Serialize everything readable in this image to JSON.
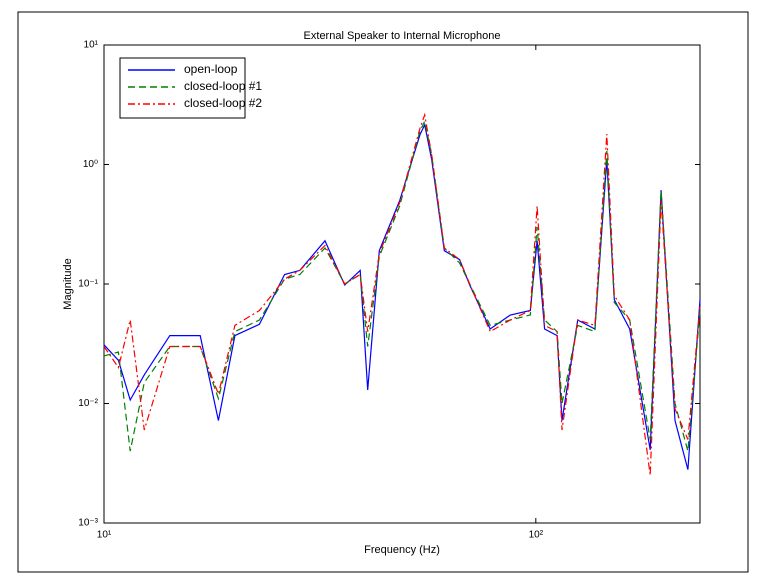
{
  "chart_data": {
    "type": "line",
    "title": "External Speaker to Internal Microphone",
    "x_label": "Frequency (Hz)",
    "y_label": "Magnitude",
    "xscale": "log",
    "yscale": "log",
    "legend": "upper left",
    "xlim": [
      10,
      240
    ],
    "ylim": [
      0.001,
      10
    ],
    "xticks": [
      {
        "value": 10,
        "label": "10¹"
      },
      {
        "value": 100,
        "label": "10²"
      }
    ],
    "yticks": [
      {
        "value": 0.001,
        "label": "10⁻³"
      },
      {
        "value": 0.01,
        "label": "10⁻²"
      },
      {
        "value": 0.1,
        "label": "10⁻¹"
      },
      {
        "value": 1,
        "label": "10⁰"
      },
      {
        "value": 10,
        "label": "10¹"
      }
    ],
    "x": [
      10,
      10.8,
      11.5,
      12.4,
      14.2,
      16.7,
      18.4,
      20.1,
      22.9,
      26.2,
      28.4,
      32.5,
      36.1,
      39.2,
      40.8,
      43.4,
      48.4,
      53.9,
      55.3,
      57.4,
      61.4,
      66.6,
      70.3,
      78.4,
      87.3,
      97.1,
      100.7,
      104.8,
      112,
      115,
      125,
      137,
      146,
      152,
      165,
      184,
      195,
      210,
      225,
      240
    ],
    "series": [
      {
        "name": "open-loop",
        "color": "#0000ff",
        "style": "solid",
        "values": [
          0.031,
          0.023,
          0.0107,
          0.0174,
          0.037,
          0.037,
          0.0072,
          0.037,
          0.046,
          0.12,
          0.13,
          0.23,
          0.098,
          0.13,
          0.013,
          0.19,
          0.5,
          1.77,
          2.15,
          1.1,
          0.19,
          0.16,
          0.098,
          0.042,
          0.055,
          0.06,
          0.23,
          0.042,
          0.037,
          0.0072,
          0.05,
          0.042,
          1.1,
          0.074,
          0.042,
          0.0041,
          0.61,
          0.0072,
          0.0028,
          0.074
        ]
      },
      {
        "name": "closed-loop #1",
        "color": "#008000",
        "style": "dashed",
        "values": [
          0.025,
          0.027,
          0.004,
          0.015,
          0.03,
          0.03,
          0.011,
          0.04,
          0.05,
          0.11,
          0.12,
          0.2,
          0.1,
          0.12,
          0.03,
          0.17,
          0.45,
          1.9,
          2.3,
          1.2,
          0.2,
          0.15,
          0.1,
          0.045,
          0.05,
          0.055,
          0.3,
          0.05,
          0.04,
          0.01,
          0.045,
          0.04,
          1.3,
          0.07,
          0.05,
          0.005,
          0.6,
          0.01,
          0.004,
          0.06
        ]
      },
      {
        "name": "closed-loop #2",
        "color": "#ff0000",
        "style": "dashdot",
        "values": [
          0.03,
          0.02,
          0.05,
          0.006,
          0.03,
          0.03,
          0.012,
          0.045,
          0.06,
          0.11,
          0.13,
          0.21,
          0.1,
          0.12,
          0.04,
          0.18,
          0.48,
          2.0,
          2.6,
          1.2,
          0.2,
          0.16,
          0.1,
          0.04,
          0.05,
          0.06,
          0.45,
          0.045,
          0.04,
          0.006,
          0.05,
          0.045,
          1.8,
          0.08,
          0.05,
          0.0025,
          0.5,
          0.009,
          0.005,
          0.065
        ]
      }
    ]
  }
}
